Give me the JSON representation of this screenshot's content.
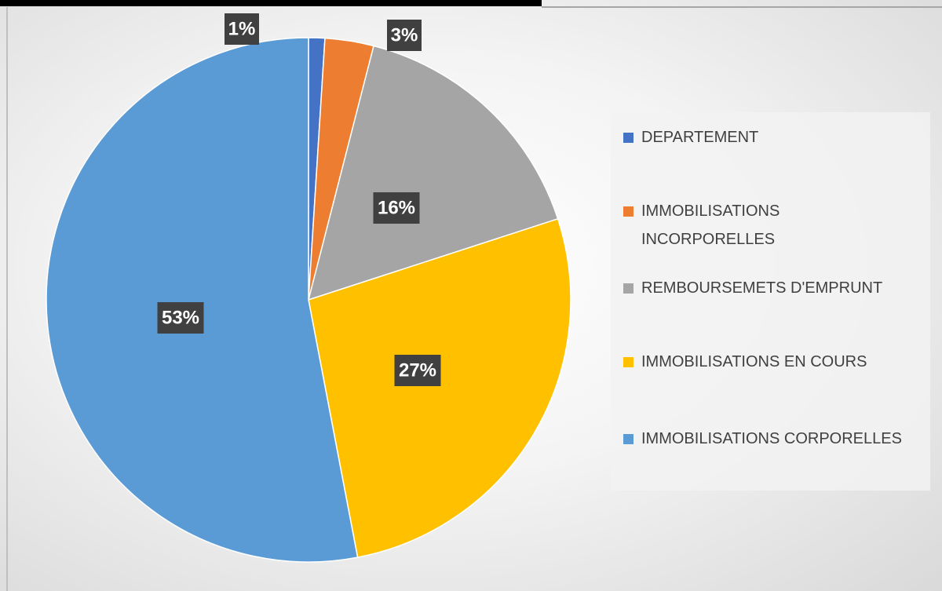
{
  "chart_data": {
    "type": "pie",
    "categories": [
      "DEPARTEMENT",
      "IMMOBILISATIONS INCORPORELLES",
      "REMBOURSEMETS D'EMPRUNT",
      "IMMOBILISATIONS EN COURS",
      "IMMOBILISATIONS CORPORELLES"
    ],
    "values": [
      1,
      3,
      16,
      27,
      53
    ],
    "value_labels": [
      "1%",
      "3%",
      "16%",
      "27%",
      "53%"
    ],
    "colors": [
      "#4472c4",
      "#ed7d31",
      "#a5a5a5",
      "#ffc000",
      "#5b9bd5"
    ],
    "legend": "right"
  }
}
